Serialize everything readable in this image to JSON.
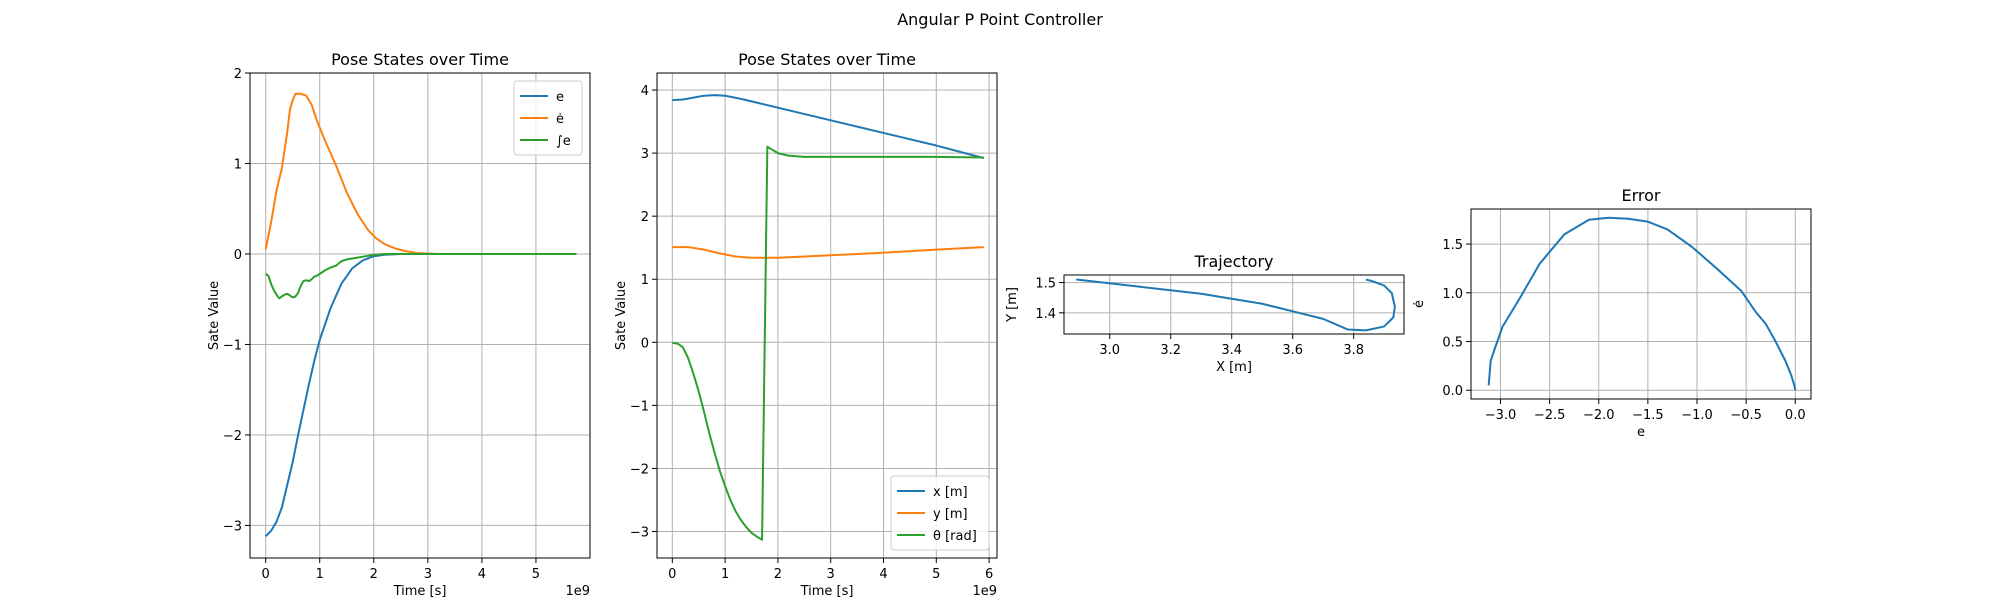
{
  "figure": {
    "suptitle": "Angular P Point Controller"
  },
  "colors": {
    "c0": "#1f77b4",
    "c1": "#ff7f0e",
    "c2": "#2ca02c"
  },
  "chart_data": [
    {
      "id": "ax1",
      "type": "line",
      "title": "Pose States over Time",
      "xlabel": "Time [s]",
      "ylabel": "Sate Value",
      "x_offset_text": "1e9",
      "xlim": [
        -0.29,
        6.0
      ],
      "ylim": [
        -3.36,
        2.0
      ],
      "xticks": [
        0,
        1,
        2,
        3,
        4,
        5
      ],
      "yticks": [
        -3,
        -2,
        -1,
        0,
        1,
        2
      ],
      "grid": true,
      "legend": {
        "position": "upper right",
        "entries": [
          "e",
          "ė",
          "∫e"
        ]
      },
      "series": [
        {
          "name": "e",
          "color": "#1f77b4",
          "points": [
            [
              0.0,
              -3.12
            ],
            [
              0.1,
              -3.06
            ],
            [
              0.2,
              -2.96
            ],
            [
              0.3,
              -2.8
            ],
            [
              0.4,
              -2.55
            ],
            [
              0.5,
              -2.3
            ],
            [
              0.6,
              -2.0
            ],
            [
              0.7,
              -1.72
            ],
            [
              0.8,
              -1.44
            ],
            [
              0.9,
              -1.18
            ],
            [
              1.0,
              -0.95
            ],
            [
              1.2,
              -0.6
            ],
            [
              1.4,
              -0.33
            ],
            [
              1.6,
              -0.16
            ],
            [
              1.8,
              -0.07
            ],
            [
              2.0,
              -0.025
            ],
            [
              2.2,
              -0.008
            ],
            [
              2.5,
              0.0
            ],
            [
              3.0,
              0.0
            ],
            [
              4.0,
              0.0
            ],
            [
              5.0,
              0.0
            ],
            [
              5.75,
              0.0
            ]
          ]
        },
        {
          "name": "ė",
          "color": "#ff7f0e",
          "points": [
            [
              0.0,
              0.05
            ],
            [
              0.1,
              0.35
            ],
            [
              0.2,
              0.7
            ],
            [
              0.3,
              0.95
            ],
            [
              0.4,
              1.35
            ],
            [
              0.45,
              1.6
            ],
            [
              0.5,
              1.7
            ],
            [
              0.55,
              1.77
            ],
            [
              0.65,
              1.77
            ],
            [
              0.75,
              1.75
            ],
            [
              0.85,
              1.65
            ],
            [
              0.95,
              1.47
            ],
            [
              1.1,
              1.25
            ],
            [
              1.3,
              0.98
            ],
            [
              1.5,
              0.68
            ],
            [
              1.7,
              0.44
            ],
            [
              1.9,
              0.26
            ],
            [
              2.05,
              0.17
            ],
            [
              2.2,
              0.11
            ],
            [
              2.4,
              0.06
            ],
            [
              2.6,
              0.03
            ],
            [
              2.8,
              0.01
            ],
            [
              3.2,
              0.0
            ],
            [
              4.0,
              0.0
            ],
            [
              5.0,
              0.0
            ],
            [
              5.75,
              0.0
            ]
          ]
        },
        {
          "name": "∫e",
          "color": "#2ca02c",
          "points": [
            [
              0.0,
              -0.22
            ],
            [
              0.05,
              -0.24
            ],
            [
              0.1,
              -0.33
            ],
            [
              0.15,
              -0.4
            ],
            [
              0.2,
              -0.45
            ],
            [
              0.25,
              -0.49
            ],
            [
              0.3,
              -0.47
            ],
            [
              0.35,
              -0.45
            ],
            [
              0.4,
              -0.44
            ],
            [
              0.45,
              -0.46
            ],
            [
              0.5,
              -0.48
            ],
            [
              0.55,
              -0.47
            ],
            [
              0.6,
              -0.43
            ],
            [
              0.65,
              -0.35
            ],
            [
              0.7,
              -0.3
            ],
            [
              0.75,
              -0.29
            ],
            [
              0.8,
              -0.3
            ],
            [
              0.85,
              -0.28
            ],
            [
              0.9,
              -0.25
            ],
            [
              0.95,
              -0.24
            ],
            [
              1.0,
              -0.22
            ],
            [
              1.1,
              -0.18
            ],
            [
              1.2,
              -0.15
            ],
            [
              1.3,
              -0.13
            ],
            [
              1.4,
              -0.08
            ],
            [
              1.5,
              -0.06
            ],
            [
              1.6,
              -0.05
            ],
            [
              1.7,
              -0.04
            ],
            [
              1.8,
              -0.03
            ],
            [
              1.9,
              -0.02
            ],
            [
              2.0,
              -0.01
            ],
            [
              2.2,
              0.0
            ],
            [
              3.0,
              0.0
            ],
            [
              4.0,
              0.0
            ],
            [
              5.0,
              0.0
            ],
            [
              5.75,
              0.0
            ]
          ]
        }
      ]
    },
    {
      "id": "ax2",
      "type": "line",
      "title": "Pose States over Time",
      "xlabel": "Time [s]",
      "ylabel": "Sate Value",
      "x_offset_text": "1e9",
      "xlim": [
        -0.29,
        6.15
      ],
      "ylim": [
        -3.42,
        4.27
      ],
      "xticks": [
        0,
        1,
        2,
        3,
        4,
        5,
        6
      ],
      "yticks": [
        -3,
        -2,
        -1,
        0,
        1,
        2,
        3,
        4
      ],
      "grid": true,
      "legend": {
        "position": "lower right",
        "entries": [
          "x [m]",
          "y [m]",
          "θ [rad]"
        ]
      },
      "series": [
        {
          "name": "x [m]",
          "color": "#1f77b4",
          "points": [
            [
              0.0,
              3.84
            ],
            [
              0.2,
              3.85
            ],
            [
              0.4,
              3.88
            ],
            [
              0.6,
              3.91
            ],
            [
              0.8,
              3.92
            ],
            [
              1.0,
              3.91
            ],
            [
              1.3,
              3.86
            ],
            [
              1.6,
              3.8
            ],
            [
              2.0,
              3.72
            ],
            [
              3.0,
              3.52
            ],
            [
              4.0,
              3.32
            ],
            [
              5.0,
              3.12
            ],
            [
              5.9,
              2.92
            ]
          ]
        },
        {
          "name": "y [m]",
          "color": "#ff7f0e",
          "points": [
            [
              0.0,
              1.51
            ],
            [
              0.3,
              1.51
            ],
            [
              0.6,
              1.47
            ],
            [
              0.9,
              1.41
            ],
            [
              1.2,
              1.36
            ],
            [
              1.5,
              1.34
            ],
            [
              1.8,
              1.34
            ],
            [
              2.0,
              1.34
            ],
            [
              3.0,
              1.38
            ],
            [
              4.0,
              1.42
            ],
            [
              5.0,
              1.47
            ],
            [
              5.9,
              1.51
            ]
          ]
        },
        {
          "name": "θ [rad]",
          "color": "#2ca02c",
          "points": [
            [
              0.0,
              -0.01
            ],
            [
              0.1,
              -0.02
            ],
            [
              0.2,
              -0.08
            ],
            [
              0.3,
              -0.25
            ],
            [
              0.4,
              -0.5
            ],
            [
              0.5,
              -0.78
            ],
            [
              0.6,
              -1.1
            ],
            [
              0.7,
              -1.44
            ],
            [
              0.8,
              -1.75
            ],
            [
              0.9,
              -2.04
            ],
            [
              1.0,
              -2.28
            ],
            [
              1.1,
              -2.5
            ],
            [
              1.2,
              -2.68
            ],
            [
              1.3,
              -2.82
            ],
            [
              1.4,
              -2.93
            ],
            [
              1.5,
              -3.02
            ],
            [
              1.6,
              -3.08
            ],
            [
              1.7,
              -3.13
            ],
            [
              1.8,
              3.1
            ],
            [
              1.9,
              3.05
            ],
            [
              2.0,
              3.0
            ],
            [
              2.2,
              2.96
            ],
            [
              2.5,
              2.94
            ],
            [
              3.0,
              2.94
            ],
            [
              4.0,
              2.94
            ],
            [
              5.0,
              2.94
            ],
            [
              5.9,
              2.93
            ]
          ]
        }
      ]
    },
    {
      "id": "ax3",
      "type": "line",
      "title": "Trajectory",
      "xlabel": "X [m]",
      "ylabel": "Y [m]",
      "xlim": [
        2.85,
        3.965
      ],
      "ylim": [
        1.33,
        1.525
      ],
      "xticks": [
        3.0,
        3.2,
        3.4,
        3.6,
        3.8
      ],
      "yticks": [
        1.4,
        1.5
      ],
      "grid": true,
      "series": [
        {
          "name": "",
          "color": "#1f77b4",
          "points": [
            [
              2.89,
              1.51
            ],
            [
              3.1,
              1.486
            ],
            [
              3.3,
              1.463
            ],
            [
              3.5,
              1.43
            ],
            [
              3.6,
              1.405
            ],
            [
              3.7,
              1.38
            ],
            [
              3.78,
              1.345
            ],
            [
              3.84,
              1.342
            ],
            [
              3.9,
              1.355
            ],
            [
              3.93,
              1.385
            ],
            [
              3.935,
              1.42
            ],
            [
              3.925,
              1.465
            ],
            [
              3.9,
              1.49
            ],
            [
              3.86,
              1.505
            ],
            [
              3.84,
              1.51
            ]
          ]
        }
      ]
    },
    {
      "id": "ax4",
      "type": "line",
      "title": "Error",
      "xlabel": "e",
      "ylabel": "ė",
      "xlim": [
        -3.3,
        0.16
      ],
      "ylim": [
        -0.09,
        1.86
      ],
      "xticks": [
        -3.0,
        -2.5,
        -2.0,
        -1.5,
        -1.0,
        -0.5,
        0.0
      ],
      "yticks": [
        0.0,
        0.5,
        1.0,
        1.5
      ],
      "grid": true,
      "series": [
        {
          "name": "",
          "color": "#1f77b4",
          "points": [
            [
              -3.12,
              0.05
            ],
            [
              -3.1,
              0.3
            ],
            [
              -3.05,
              0.45
            ],
            [
              -2.98,
              0.65
            ],
            [
              -2.8,
              0.95
            ],
            [
              -2.6,
              1.3
            ],
            [
              -2.35,
              1.6
            ],
            [
              -2.1,
              1.75
            ],
            [
              -1.9,
              1.77
            ],
            [
              -1.7,
              1.76
            ],
            [
              -1.5,
              1.73
            ],
            [
              -1.3,
              1.65
            ],
            [
              -1.05,
              1.47
            ],
            [
              -0.8,
              1.25
            ],
            [
              -0.55,
              1.02
            ],
            [
              -0.4,
              0.8
            ],
            [
              -0.3,
              0.68
            ],
            [
              -0.2,
              0.5
            ],
            [
              -0.1,
              0.3
            ],
            [
              -0.04,
              0.15
            ],
            [
              -0.01,
              0.05
            ],
            [
              0.0,
              0.0
            ]
          ]
        }
      ]
    }
  ]
}
